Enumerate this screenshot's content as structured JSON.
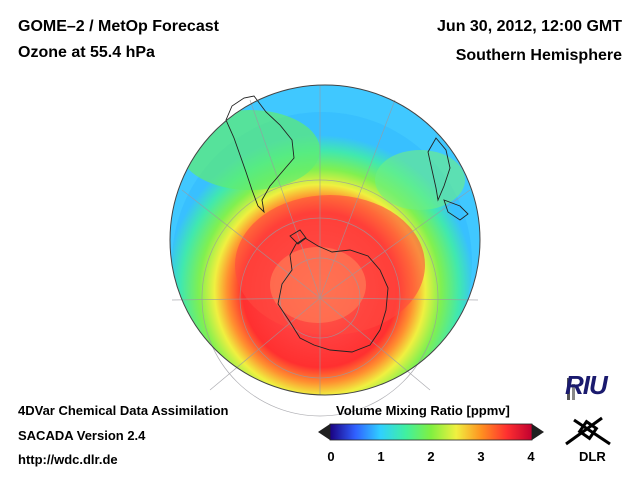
{
  "header": {
    "title": "GOME–2 / MetOp Forecast",
    "subtitle": "Ozone at 55.4 hPa",
    "date": "Jun 30, 2012, 12:00 GMT",
    "region": "Southern Hemisphere"
  },
  "footer": {
    "line1": "4DVar Chemical Data Assimilation",
    "line2": "SACADA Version 2.4",
    "line3": "http://wdc.dlr.de"
  },
  "legend": {
    "title": "Volume Mixing Ratio [ppmv]",
    "ticks": [
      "0",
      "1",
      "2",
      "3",
      "4"
    ],
    "range": [
      0,
      4
    ],
    "colors": [
      "#1a0080",
      "#3060ff",
      "#30d0ff",
      "#40f0a0",
      "#80f040",
      "#f0f040",
      "#ff9020",
      "#ff3030",
      "#c00030"
    ]
  },
  "logos": {
    "riu": "RIU",
    "dlr": "DLR"
  },
  "map": {
    "projection": "orthographic",
    "view": "South Pole",
    "field": "ozone volume mixing ratio",
    "palette": {
      "ocean_edge": "#40c8ff",
      "low": "#50f0a0",
      "mid": "#f0f040",
      "high": "#ff3838",
      "core": "#ff7050"
    }
  }
}
